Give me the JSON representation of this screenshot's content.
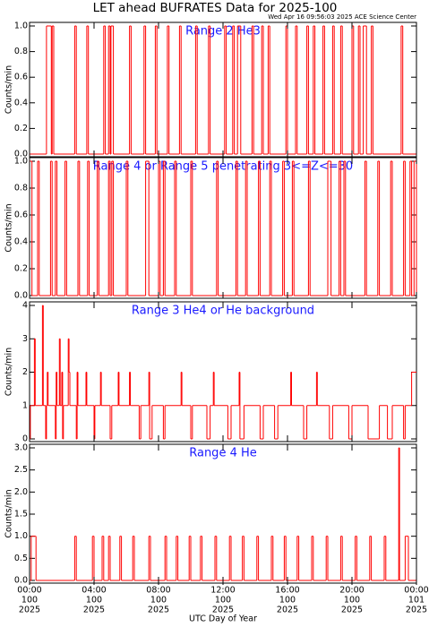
{
  "title": "LET ahead BUFRATES Data for 2025-100",
  "timestamp": "Wed Apr 16 09:56:03 2025 ACE Science Center",
  "chart_data": [
    {
      "type": "line",
      "step": "post",
      "title": "Range 2 He3",
      "ylabel": "Counts/min",
      "xlim": [
        0,
        24
      ],
      "ylim": [
        0,
        1
      ],
      "yticks": [
        {
          "value": 0,
          "label": "0.0"
        },
        {
          "value": 0.2,
          "label": "0.2"
        },
        {
          "value": 0.4,
          "label": "0.4"
        },
        {
          "value": 0.6,
          "label": "0.6"
        },
        {
          "value": 0.8,
          "label": "0.8"
        },
        {
          "value": 1,
          "label": "1.0"
        }
      ],
      "x": [
        0,
        1.05,
        1.35,
        1.4,
        1.5,
        2.8,
        2.9,
        3.55,
        3.65,
        4.6,
        4.7,
        4.9,
        5.0,
        5.05,
        5.2,
        6.2,
        6.3,
        7.1,
        7.2,
        7.8,
        7.9,
        8.55,
        8.65,
        9.3,
        9.4,
        10.3,
        10.4,
        11.1,
        11.2,
        12.1,
        12.2,
        12.6,
        12.7,
        12.9,
        13.1,
        13.8,
        13.9,
        14.4,
        14.5,
        14.8,
        14.9,
        15.9,
        16.0,
        16.5,
        16.6,
        17.2,
        17.3,
        17.6,
        17.7,
        18.2,
        18.3,
        18.8,
        18.9,
        19.3,
        19.4,
        20.0,
        20.1,
        20.4,
        20.5,
        20.7,
        20.9,
        21.2,
        21.3,
        23.05,
        23.15,
        24
      ],
      "series": [
        {
          "color": "#ff0000",
          "values": [
            0,
            1,
            0,
            1,
            0,
            1,
            0,
            1,
            0,
            1,
            0,
            1,
            0,
            1,
            0,
            1,
            0,
            1,
            0,
            1,
            0,
            1,
            0,
            1,
            0,
            1,
            0,
            1,
            0,
            1,
            0,
            1,
            0,
            1,
            0,
            1,
            0,
            1,
            0,
            1,
            0,
            1,
            0,
            1,
            0,
            1,
            0,
            1,
            0,
            1,
            0,
            1,
            0,
            1,
            0,
            1,
            0,
            1,
            0,
            1,
            0,
            1,
            0,
            1,
            0,
            0
          ]
        }
      ]
    },
    {
      "type": "line",
      "step": "post",
      "title": "Range 4 or Range 5 penetrating 3<=Z<=30",
      "ylabel": "Counts/min",
      "xlim": [
        0,
        24
      ],
      "ylim": [
        0,
        1
      ],
      "yticks": [
        {
          "value": 0,
          "label": "0.0"
        },
        {
          "value": 0.2,
          "label": "0.2"
        },
        {
          "value": 0.4,
          "label": "0.4"
        },
        {
          "value": 0.6,
          "label": "0.6"
        },
        {
          "value": 0.8,
          "label": "0.8"
        },
        {
          "value": 1,
          "label": "1.0"
        }
      ],
      "x": [
        0,
        0.15,
        0.5,
        0.6,
        1.3,
        1.4,
        1.6,
        1.7,
        2.2,
        2.3,
        3.0,
        3.1,
        3.6,
        3.7,
        4.2,
        4.3,
        4.9,
        5.0,
        5.1,
        5.2,
        6.0,
        6.1,
        7.2,
        7.4,
        8.0,
        8.1,
        8.3,
        8.4,
        9.0,
        9.1,
        10.0,
        10.1,
        11.6,
        11.7,
        12.8,
        12.9,
        13.4,
        13.5,
        14.2,
        14.3,
        14.9,
        15.0,
        15.7,
        15.8,
        16.3,
        16.4,
        17.3,
        17.4,
        18.5,
        18.7,
        19.2,
        19.3,
        19.5,
        19.6,
        20.8,
        20.9,
        21.6,
        21.7,
        22.4,
        22.5,
        23.2,
        23.3,
        23.6,
        23.7,
        23.85,
        24
      ],
      "series": [
        {
          "color": "#ff0000",
          "values": [
            1,
            0,
            1,
            0,
            1,
            0,
            1,
            0,
            1,
            0,
            1,
            0,
            1,
            0,
            1,
            0,
            1,
            0,
            1,
            0,
            1,
            0,
            1,
            0,
            1,
            0,
            1,
            0,
            1,
            0,
            1,
            0,
            1,
            0,
            1,
            0,
            1,
            0,
            1,
            0,
            1,
            0,
            1,
            0,
            1,
            0,
            1,
            0,
            1,
            0,
            1,
            0,
            1,
            0,
            1,
            0,
            1,
            0,
            1,
            0,
            1,
            0,
            1,
            0,
            1,
            0
          ]
        }
      ]
    },
    {
      "type": "line",
      "step": "post",
      "title": "Range 3 He4 or He background",
      "ylabel": "Counts/min",
      "xlim": [
        0,
        24
      ],
      "ylim": [
        0,
        4
      ],
      "yticks": [
        0,
        1,
        2,
        3,
        4
      ],
      "x": [
        0,
        0.05,
        0.3,
        0.35,
        0.8,
        0.85,
        1.0,
        1.05,
        1.1,
        1.15,
        1.6,
        1.65,
        1.7,
        1.85,
        1.9,
        2.0,
        2.05,
        2.1,
        2.4,
        2.45,
        2.5,
        2.9,
        2.95,
        3.0,
        3.5,
        3.55,
        4.0,
        4.05,
        4.4,
        4.45,
        5.0,
        5.1,
        5.5,
        5.55,
        6.2,
        6.25,
        6.8,
        6.9,
        7.4,
        7.45,
        7.6,
        8.3,
        8.4,
        9.4,
        9.45,
        10.0,
        10.1,
        11.0,
        11.2,
        11.4,
        11.45,
        12.3,
        12.5,
        13.0,
        13.05,
        13.3,
        14.3,
        14.5,
        15.2,
        15.4,
        16.2,
        16.25,
        17.0,
        17.2,
        17.8,
        17.85,
        18.6,
        18.8,
        19.8,
        20.0,
        21.0,
        21.7,
        22.2,
        22.5,
        23.2,
        23.3,
        23.7,
        24
      ],
      "series": [
        {
          "color": "#ff0000",
          "values": [
            0,
            1,
            3,
            1,
            4,
            1,
            0,
            1,
            2,
            1,
            0,
            2,
            1,
            3,
            1,
            2,
            0,
            1,
            3,
            2,
            1,
            0,
            2,
            1,
            2,
            1,
            0,
            1,
            2,
            1,
            0,
            1,
            2,
            1,
            2,
            1,
            0,
            1,
            2,
            0,
            1,
            0,
            1,
            2,
            1,
            0,
            1,
            0,
            1,
            2,
            1,
            0,
            1,
            2,
            0,
            1,
            0,
            1,
            0,
            1,
            2,
            1,
            0,
            1,
            2,
            1,
            0,
            1,
            0,
            1,
            0,
            1,
            0,
            1,
            0,
            1,
            2,
            2
          ]
        }
      ]
    },
    {
      "type": "line",
      "step": "post",
      "title": "Range 4 He",
      "ylabel": "Counts/min",
      "xlabel": "UTC Day of Year",
      "xlim": [
        0,
        24
      ],
      "ylim": [
        0,
        3
      ],
      "yticks": [
        {
          "value": 0,
          "label": "0.0"
        },
        {
          "value": 0.5,
          "label": "0.5"
        },
        {
          "value": 1,
          "label": "1.0"
        },
        {
          "value": 1.5,
          "label": "1.5"
        },
        {
          "value": 2,
          "label": "2.0"
        },
        {
          "value": 2.5,
          "label": "2.5"
        },
        {
          "value": 3,
          "label": "3.0"
        }
      ],
      "xticks": [
        {
          "value": 0,
          "label": [
            "00:00",
            "100",
            "2025"
          ]
        },
        {
          "value": 4,
          "label": [
            "04:00",
            "100",
            "2025"
          ]
        },
        {
          "value": 8,
          "label": [
            "08:00",
            "100",
            "2025"
          ]
        },
        {
          "value": 12,
          "label": [
            "12:00",
            "100",
            "2025"
          ]
        },
        {
          "value": 16,
          "label": [
            "16:00",
            "100",
            "2025"
          ]
        },
        {
          "value": 20,
          "label": [
            "20:00",
            "100",
            "2025"
          ]
        },
        {
          "value": 24,
          "label": [
            "00:00",
            "101",
            "2025"
          ]
        }
      ],
      "x": [
        0,
        0.1,
        0.4,
        2.8,
        2.9,
        3.9,
        4.0,
        4.5,
        4.6,
        4.9,
        5.0,
        5.6,
        5.7,
        6.4,
        6.5,
        7.4,
        7.5,
        8.4,
        8.5,
        9.1,
        9.2,
        9.9,
        10.0,
        10.6,
        10.7,
        11.5,
        11.6,
        12.4,
        12.5,
        13.2,
        13.3,
        14.1,
        14.2,
        15.0,
        15.1,
        15.8,
        15.9,
        16.6,
        16.7,
        17.5,
        17.6,
        18.4,
        18.5,
        19.3,
        19.4,
        20.2,
        20.3,
        21.1,
        21.2,
        22.0,
        22.1,
        22.9,
        22.95,
        23.3,
        23.5,
        24
      ],
      "series": [
        {
          "color": "#ff0000",
          "values": [
            0,
            1,
            0,
            1,
            0,
            1,
            0,
            1,
            0,
            1,
            0,
            1,
            0,
            1,
            0,
            1,
            0,
            1,
            0,
            1,
            0,
            1,
            0,
            1,
            0,
            1,
            0,
            1,
            0,
            1,
            0,
            1,
            0,
            1,
            0,
            1,
            0,
            1,
            0,
            1,
            0,
            1,
            0,
            1,
            0,
            1,
            0,
            1,
            0,
            1,
            0,
            3,
            0,
            1,
            0,
            0
          ]
        }
      ]
    }
  ]
}
